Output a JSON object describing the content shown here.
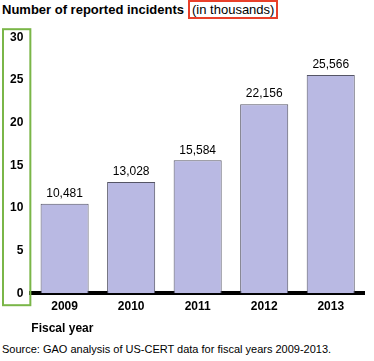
{
  "chart_data": {
    "type": "bar",
    "title": "Number of reported incidents",
    "subtitle": "(in thousands)",
    "x_label": "Fiscal year",
    "source": "Source: GAO analysis of US-CERT data for fiscal years 2009-2013.",
    "categories": [
      "2009",
      "2010",
      "2011",
      "2012",
      "2013"
    ],
    "values": [
      10.481,
      13.028,
      15.584,
      22.156,
      25.566
    ],
    "value_labels": [
      "10,481",
      "13,028",
      "15,584",
      "22,156",
      "25,566"
    ],
    "color": "#b9b9e3",
    "ylim": [
      0,
      30
    ],
    "yticks": [
      0,
      5,
      10,
      15,
      20,
      25,
      30
    ],
    "grid": false,
    "data_labels": true
  }
}
